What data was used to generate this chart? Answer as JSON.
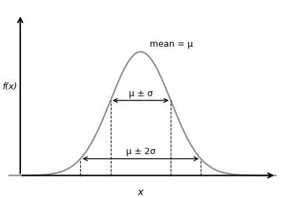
{
  "title": "mean = μ",
  "xlabel": "x",
  "ylabel": "f(x)",
  "mu": 0,
  "sigma": 1,
  "x_range": [
    -4.5,
    4.5
  ],
  "curve_color": "#888888",
  "axis_color": "#000000",
  "dashed_color": "#000000",
  "arrow_color": "#000000",
  "background_color": "#ffffff",
  "label_1sigma": "μ ± σ",
  "label_2sigma": "μ ± 2σ",
  "curve_linewidth": 1.5,
  "dashed_linewidth": 0.8,
  "arrow_linewidth": 1.0,
  "yaxis_x": -4.0,
  "xaxis_start": -4.0,
  "xaxis_end": 4.5,
  "yaxis_top": 0.52
}
